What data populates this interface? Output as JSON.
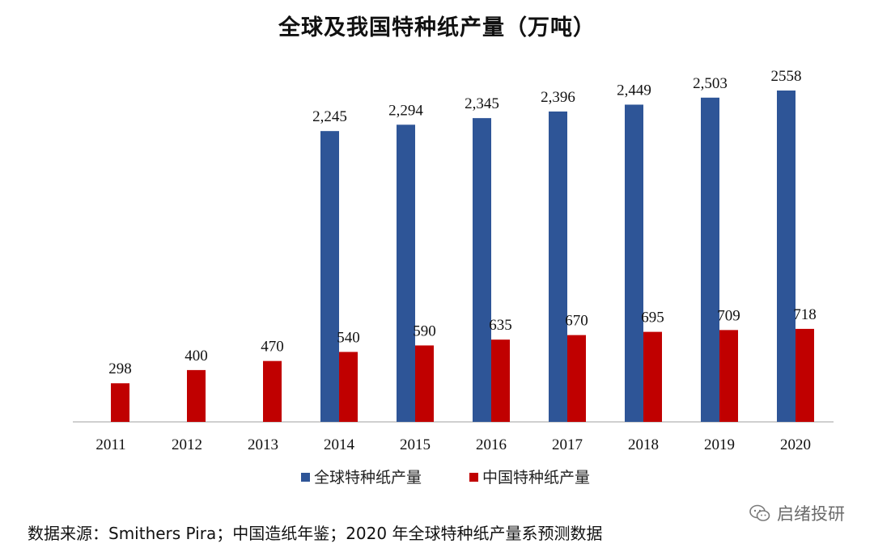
{
  "chart_data": {
    "type": "bar",
    "title": "全球及我国特种纸产量（万吨）",
    "categories": [
      "2011",
      "2012",
      "2013",
      "2014",
      "2015",
      "2016",
      "2017",
      "2018",
      "2019",
      "2020"
    ],
    "series": [
      {
        "name": "全球特种纸产量",
        "color": "#2e5597",
        "values": [
          null,
          null,
          null,
          2245,
          2294,
          2345,
          2396,
          2449,
          2503,
          2558
        ],
        "labels": [
          "",
          "",
          "",
          "2,245",
          "2,294",
          "2,345",
          "2,396",
          "2,449",
          "2,503",
          "2558"
        ]
      },
      {
        "name": "中国特种纸产量",
        "color": "#c00000",
        "values": [
          298,
          400,
          470,
          540,
          590,
          635,
          670,
          695,
          709,
          718
        ],
        "labels": [
          "298",
          "400",
          "470",
          "540",
          "590",
          "635",
          "670",
          "695",
          "709",
          "718"
        ]
      }
    ],
    "xlabel": "",
    "ylabel": "",
    "ylim": [
      0,
      2600
    ],
    "grid": false,
    "legend_position": "bottom"
  },
  "source_note": "数据来源：Smithers Pira；中国造纸年鉴；2020 年全球特种纸产量系预测数据",
  "watermark": {
    "text": "启绪投研",
    "icon": "wechat-icon"
  }
}
